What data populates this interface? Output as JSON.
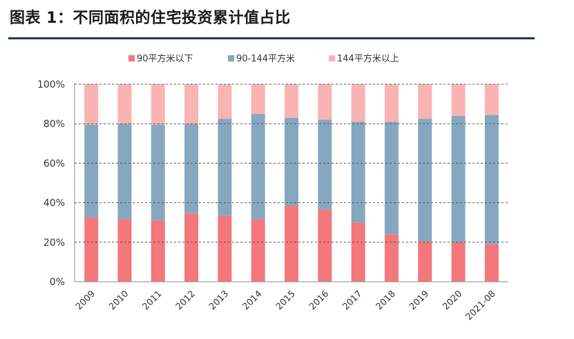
{
  "title": "图表 1：不同面积的住宅投资累计值占比",
  "colors": {
    "s1": "#f4777b",
    "s2": "#86a7c0",
    "s3": "#f9b3b3",
    "rule": "#1f3864",
    "grid": "#555555",
    "axis": "#888888"
  },
  "chart_data": {
    "type": "bar",
    "stacked": true,
    "title": "",
    "xlabel": "",
    "ylabel": "",
    "ylim": [
      0,
      100
    ],
    "yticks": [
      "0%",
      "20%",
      "40%",
      "60%",
      "80%",
      "100%"
    ],
    "legend_position": "top-center",
    "categories": [
      "2009",
      "2010",
      "2011",
      "2012",
      "2013",
      "2014",
      "2015",
      "2016",
      "2017",
      "2018",
      "2019",
      "2020",
      "2021-08"
    ],
    "series": [
      {
        "name": "90平方米以下",
        "values": [
          32.5,
          31.5,
          31,
          34.5,
          33.5,
          31.5,
          38.5,
          36.5,
          30,
          24,
          20.5,
          20,
          19
        ]
      },
      {
        "name": "90-144平方米",
        "values": [
          47,
          48.5,
          48.5,
          45.5,
          49,
          53.5,
          44.5,
          45.5,
          51,
          57,
          62,
          64,
          65.5
        ]
      },
      {
        "name": "144平方米以上",
        "values": [
          20.5,
          20,
          20.5,
          20,
          17.5,
          15,
          17,
          18,
          19,
          19,
          17.5,
          16,
          15.5
        ]
      }
    ]
  }
}
